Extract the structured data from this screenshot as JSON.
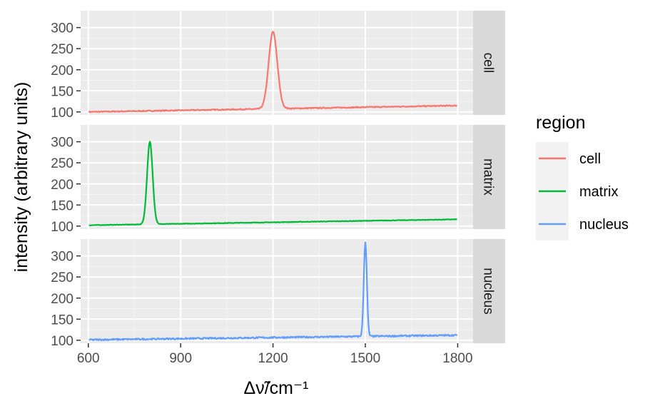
{
  "chart_data": {
    "type": "line",
    "facet": "rows",
    "xlabel": "Δν̃/cm⁻¹",
    "ylabel": "intensity (arbitrary units)",
    "xlim": [
      575,
      1850
    ],
    "ylim": [
      93,
      340
    ],
    "x_ticks": [
      600,
      900,
      1200,
      1500,
      1800
    ],
    "y_ticks": [
      100,
      150,
      200,
      250,
      300
    ],
    "grid": true,
    "legend": {
      "title": "region",
      "position": "right",
      "entries": [
        "cell",
        "matrix",
        "nucleus"
      ]
    },
    "series": [
      {
        "name": "cell",
        "color": "#F8766D",
        "baseline": [
          [
            600,
            100
          ],
          [
            1800,
            115
          ]
        ],
        "peak": {
          "center": 1200,
          "height": 290,
          "width": 14
        },
        "noise": 1.2
      },
      {
        "name": "matrix",
        "color": "#00BA38",
        "baseline": [
          [
            600,
            102
          ],
          [
            1800,
            116
          ]
        ],
        "peak": {
          "center": 800,
          "height": 300,
          "width": 9
        },
        "noise": 0.6
      },
      {
        "name": "nucleus",
        "color": "#619CFF",
        "baseline": [
          [
            600,
            101
          ],
          [
            1800,
            112
          ]
        ],
        "peak": {
          "center": 1500,
          "height": 333,
          "width": 5
        },
        "noise": 1.8
      }
    ]
  }
}
